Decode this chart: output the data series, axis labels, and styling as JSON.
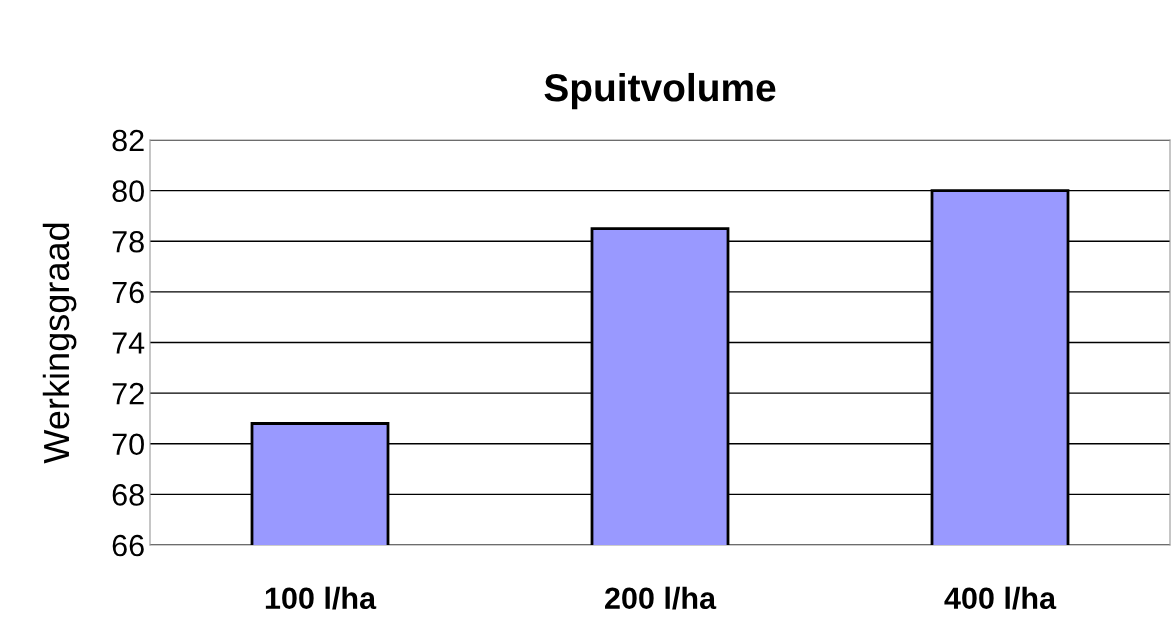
{
  "chart_data": {
    "type": "bar",
    "title": "Spuitvolume",
    "ylabel": "Werkingsgraad",
    "categories": [
      "100 l/ha",
      "200 l/ha",
      "400 l/ha"
    ],
    "values": [
      70.8,
      78.5,
      80.0
    ],
    "color": "#9999ff",
    "ylim": [
      66,
      82
    ],
    "yticks": [
      66,
      68,
      70,
      72,
      74,
      76,
      78,
      80,
      82
    ],
    "grid": "y",
    "legend": false
  }
}
